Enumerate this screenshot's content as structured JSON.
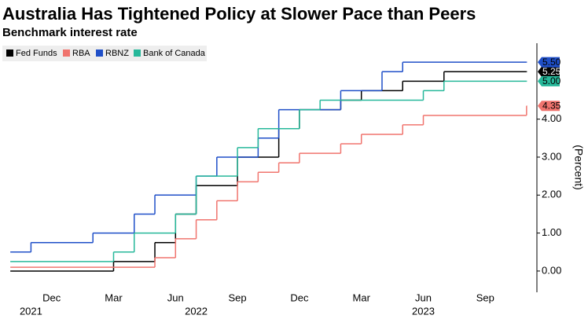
{
  "chart_data": {
    "type": "step",
    "title": "Australia Has Tightened Policy at Slower Pace than Peers",
    "subtitle": "Benchmark interest rate",
    "y_label": "(Percent)",
    "xlim": [
      "2021-10",
      "2023-12"
    ],
    "xticks": [
      {
        "value": "2021-12",
        "label": "Dec"
      },
      {
        "value": "2022-03",
        "label": "Mar"
      },
      {
        "value": "2022-06",
        "label": "Jun"
      },
      {
        "value": "2022-09",
        "label": "Sep"
      },
      {
        "value": "2022-12",
        "label": "Dec"
      },
      {
        "value": "2023-03",
        "label": "Mar"
      },
      {
        "value": "2023-06",
        "label": "Jun"
      },
      {
        "value": "2023-09",
        "label": "Sep"
      }
    ],
    "x_year_labels": [
      {
        "value": "2021-11",
        "label": "2021"
      },
      {
        "value": "2022-07",
        "label": "2022"
      },
      {
        "value": "2023-06",
        "label": "2023"
      }
    ],
    "ylim": [
      -0.56,
      6.0
    ],
    "yticks": [
      {
        "value": 0,
        "label": "0.00"
      },
      {
        "value": 1,
        "label": "1.00"
      },
      {
        "value": 2,
        "label": "2.00"
      },
      {
        "value": 3,
        "label": "3.00"
      },
      {
        "value": 4,
        "label": "4.00"
      }
    ],
    "grid": false,
    "legend": "top-left",
    "series": [
      {
        "name": "Fed Funds",
        "color": "#000000",
        "x": [
          "2021-10",
          "2022-03",
          "2022-05",
          "2022-06",
          "2022-07",
          "2022-09",
          "2022-11",
          "2022-12",
          "2023-02",
          "2023-03",
          "2023-05",
          "2023-07",
          "2023-11"
        ],
        "values": [
          0,
          0.25,
          0.75,
          1.5,
          2.25,
          3.0,
          3.75,
          4.25,
          4.5,
          4.75,
          5.0,
          5.25,
          5.25
        ],
        "value_labels": [
          null,
          null,
          null,
          null,
          null,
          null,
          null,
          null,
          null,
          null,
          null,
          null,
          "5.25"
        ]
      },
      {
        "name": "RBA",
        "color": "#f0746e",
        "x": [
          "2021-10",
          "2022-05",
          "2022-06",
          "2022-07",
          "2022-08",
          "2022-09",
          "2022-10",
          "2022-11",
          "2022-12",
          "2023-02",
          "2023-03",
          "2023-05",
          "2023-06",
          "2023-11"
        ],
        "values": [
          0.1,
          0.35,
          0.85,
          1.35,
          1.85,
          2.35,
          2.6,
          2.85,
          3.1,
          3.35,
          3.6,
          3.85,
          4.1,
          4.35
        ],
        "value_labels": [
          null,
          null,
          null,
          null,
          null,
          null,
          null,
          null,
          null,
          null,
          null,
          null,
          null,
          "4.35"
        ]
      },
      {
        "name": "RBNZ",
        "color": "#1f4fc8",
        "x": [
          "2021-10",
          "2021-11",
          "2022-02",
          "2022-04",
          "2022-05",
          "2022-07",
          "2022-08",
          "2022-10",
          "2022-11",
          "2023-02",
          "2023-04",
          "2023-05",
          "2023-11"
        ],
        "values": [
          0.5,
          0.75,
          1.0,
          1.5,
          2.0,
          2.5,
          3.0,
          3.5,
          4.25,
          4.75,
          5.25,
          5.5,
          5.5
        ],
        "value_labels": [
          null,
          null,
          null,
          null,
          null,
          null,
          null,
          null,
          null,
          null,
          null,
          null,
          "5.50"
        ]
      },
      {
        "name": "Bank of Canada",
        "color": "#26b89a",
        "x": [
          "2021-10",
          "2022-03",
          "2022-04",
          "2022-06",
          "2022-07",
          "2022-09",
          "2022-10",
          "2022-12",
          "2023-01",
          "2023-06",
          "2023-07",
          "2023-11"
        ],
        "values": [
          0.25,
          0.5,
          1.0,
          1.5,
          2.5,
          3.25,
          3.75,
          4.25,
          4.5,
          4.75,
          5.0,
          5.0
        ],
        "value_labels": [
          null,
          null,
          null,
          null,
          null,
          null,
          null,
          null,
          null,
          null,
          null,
          "5.00"
        ]
      }
    ]
  }
}
